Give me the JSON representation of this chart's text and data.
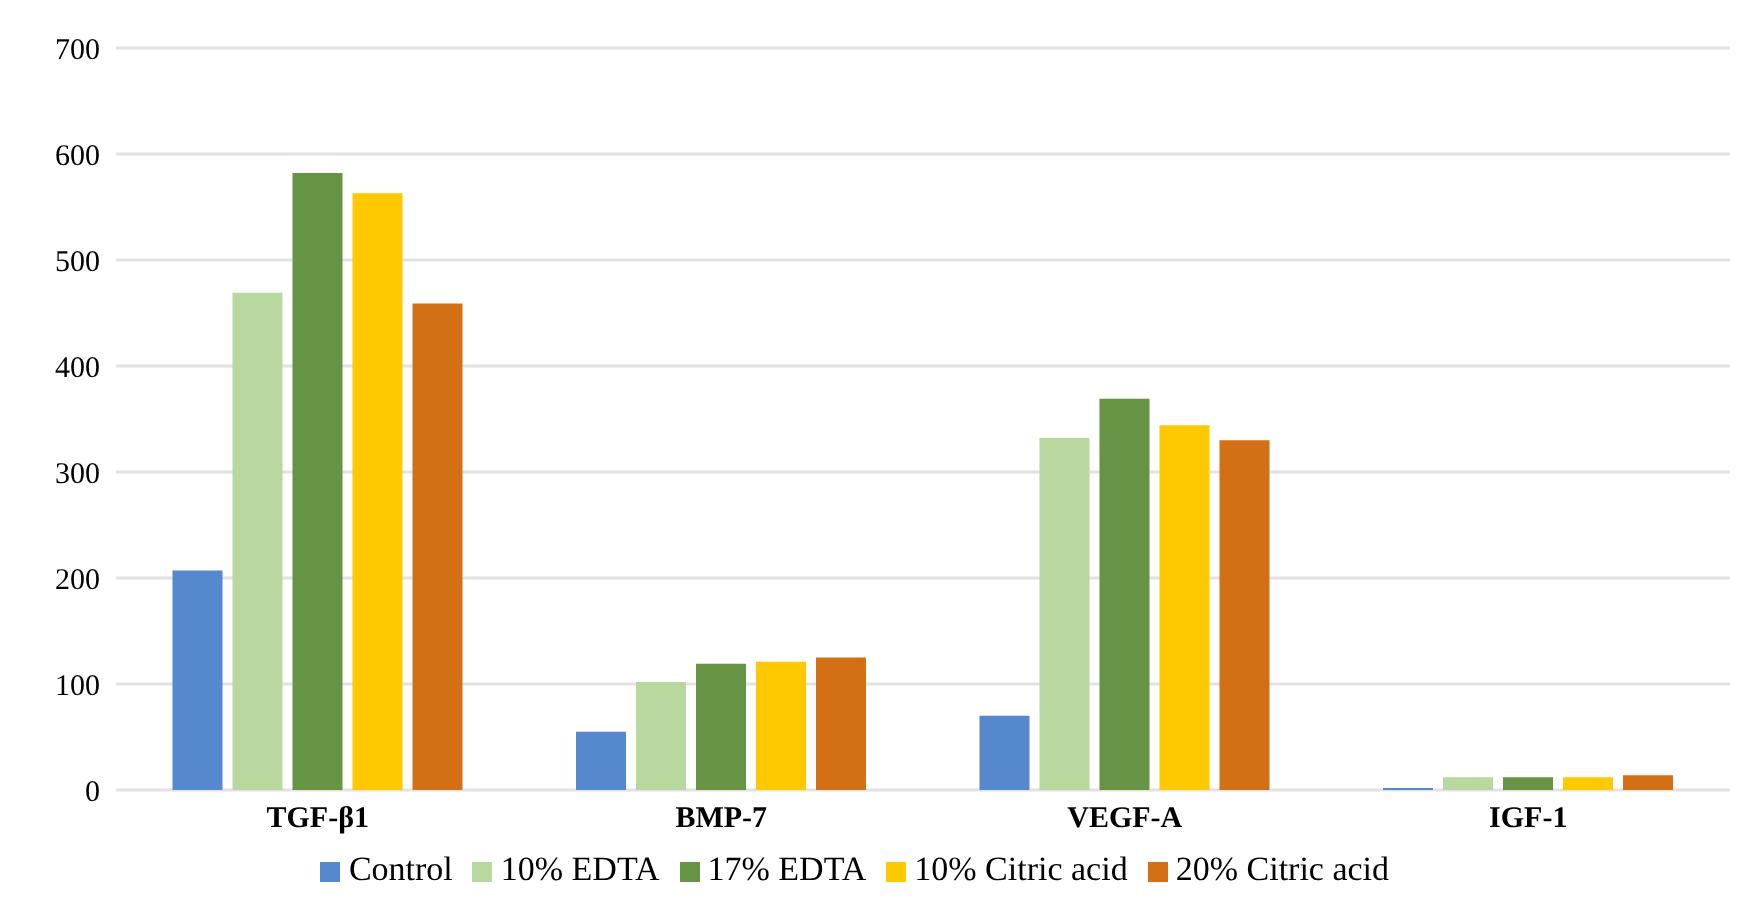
{
  "chart_data": {
    "type": "bar",
    "categories": [
      "TGF-β1",
      "BMP-7",
      "VEGF-A",
      "IGF-1"
    ],
    "series": [
      {
        "name": "Control",
        "color": "#5588cc",
        "values": [
          207,
          55,
          70,
          2
        ]
      },
      {
        "name": "10% EDTA",
        "color": "#b8d8a0",
        "values": [
          469,
          102,
          332,
          12
        ]
      },
      {
        "name": "17% EDTA",
        "color": "#679344",
        "values": [
          582,
          119,
          369,
          12
        ]
      },
      {
        "name": "10% Citric acid",
        "color": "#fec900",
        "values": [
          563,
          121,
          344,
          12
        ]
      },
      {
        "name": "20% Citric acid",
        "color": "#d37015",
        "values": [
          459,
          125,
          330,
          14
        ]
      }
    ],
    "ylim": [
      0,
      700
    ],
    "yticks": [
      0,
      100,
      200,
      300,
      400,
      500,
      600,
      700
    ],
    "grid": "y",
    "legend": "bottom"
  }
}
